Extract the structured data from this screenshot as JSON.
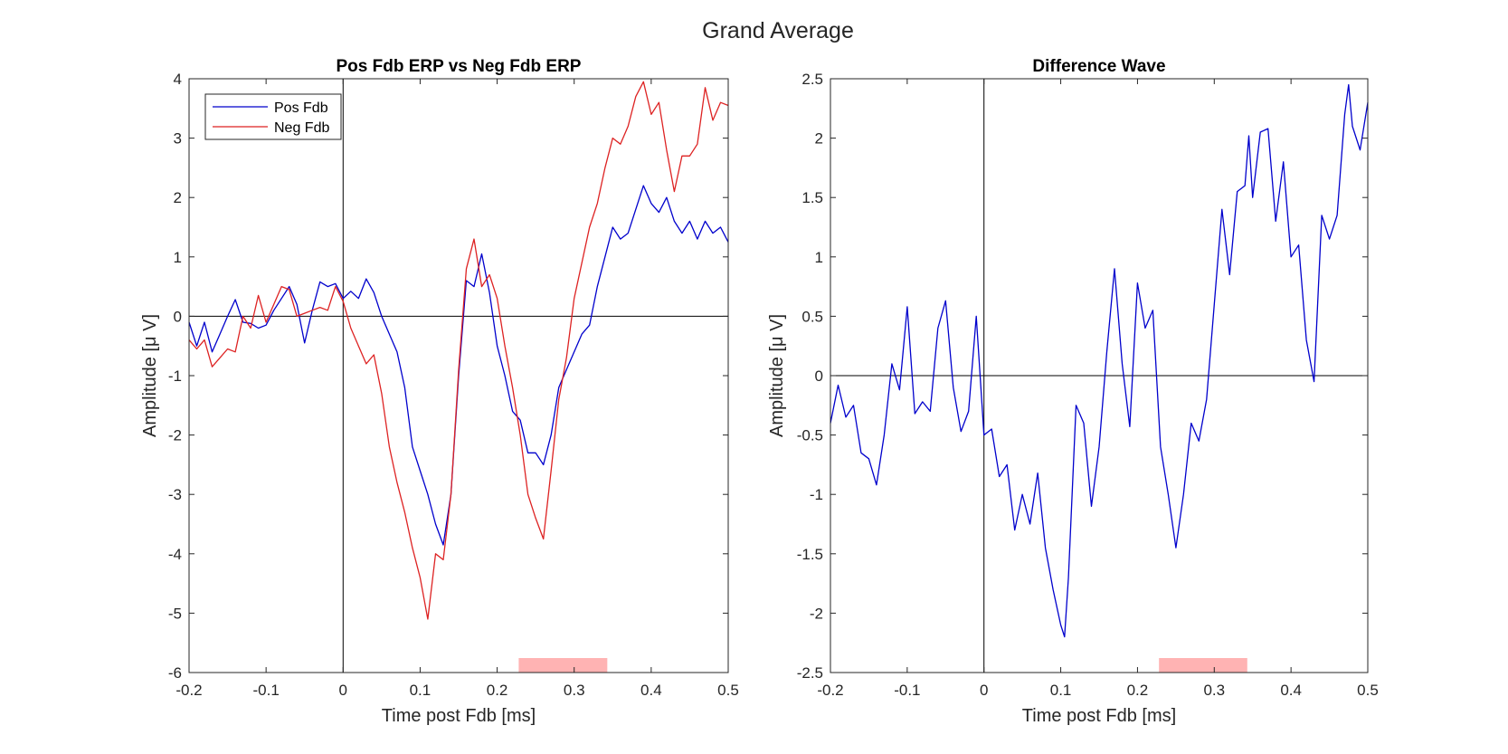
{
  "figure": {
    "title": "Grand Average"
  },
  "chart_data": [
    {
      "type": "line",
      "title": "Pos Fdb ERP vs Neg Fdb ERP",
      "xlabel": "Time post Fdb [ms]",
      "ylabel": "Amplitude [μ V]",
      "xlim": [
        -0.2,
        0.5
      ],
      "ylim": [
        -6,
        4
      ],
      "xticks": [
        "-0.2",
        "-0.1",
        "0",
        "0.1",
        "0.2",
        "0.3",
        "0.4",
        "0.5"
      ],
      "yticks": [
        "-6",
        "-5",
        "-4",
        "-3",
        "-2",
        "-1",
        "0",
        "1",
        "2",
        "3",
        "4"
      ],
      "xtick_values": [
        -0.2,
        -0.1,
        0,
        0.1,
        0.2,
        0.3,
        0.4,
        0.5
      ],
      "ytick_values": [
        -6,
        -5,
        -4,
        -3,
        -2,
        -1,
        0,
        1,
        2,
        3,
        4
      ],
      "grid": false,
      "legend_placement": "top-left",
      "significance_window": {
        "x": [
          0.228,
          0.343
        ],
        "color": "#ffb3b3"
      },
      "series": [
        {
          "name": "Pos Fdb",
          "color": "#0000cc",
          "points": [
            [
              -0.2,
              -0.1
            ],
            [
              -0.19,
              -0.5
            ],
            [
              -0.18,
              -0.1
            ],
            [
              -0.17,
              -0.6
            ],
            [
              -0.16,
              -0.3
            ],
            [
              -0.15,
              0.0
            ],
            [
              -0.14,
              0.28
            ],
            [
              -0.13,
              -0.1
            ],
            [
              -0.12,
              -0.12
            ],
            [
              -0.11,
              -0.2
            ],
            [
              -0.1,
              -0.15
            ],
            [
              -0.09,
              0.1
            ],
            [
              -0.08,
              0.3
            ],
            [
              -0.07,
              0.5
            ],
            [
              -0.06,
              0.2
            ],
            [
              -0.05,
              -0.45
            ],
            [
              -0.04,
              0.1
            ],
            [
              -0.03,
              0.58
            ],
            [
              -0.02,
              0.5
            ],
            [
              -0.01,
              0.55
            ],
            [
              0.0,
              0.3
            ],
            [
              0.01,
              0.42
            ],
            [
              0.02,
              0.3
            ],
            [
              0.03,
              0.63
            ],
            [
              0.04,
              0.4
            ],
            [
              0.05,
              0.0
            ],
            [
              0.06,
              -0.3
            ],
            [
              0.07,
              -0.6
            ],
            [
              0.08,
              -1.2
            ],
            [
              0.09,
              -2.2
            ],
            [
              0.1,
              -2.6
            ],
            [
              0.11,
              -3.0
            ],
            [
              0.12,
              -3.5
            ],
            [
              0.13,
              -3.85
            ],
            [
              0.14,
              -3.0
            ],
            [
              0.15,
              -1.0
            ],
            [
              0.16,
              0.6
            ],
            [
              0.17,
              0.5
            ],
            [
              0.18,
              1.05
            ],
            [
              0.19,
              0.4
            ],
            [
              0.2,
              -0.5
            ],
            [
              0.21,
              -1.0
            ],
            [
              0.22,
              -1.6
            ],
            [
              0.23,
              -1.75
            ],
            [
              0.24,
              -2.3
            ],
            [
              0.25,
              -2.3
            ],
            [
              0.26,
              -2.5
            ],
            [
              0.27,
              -2.0
            ],
            [
              0.28,
              -1.2
            ],
            [
              0.29,
              -0.9
            ],
            [
              0.3,
              -0.6
            ],
            [
              0.31,
              -0.3
            ],
            [
              0.32,
              -0.15
            ],
            [
              0.33,
              0.5
            ],
            [
              0.34,
              1.0
            ],
            [
              0.35,
              1.5
            ],
            [
              0.36,
              1.3
            ],
            [
              0.37,
              1.4
            ],
            [
              0.38,
              1.8
            ],
            [
              0.39,
              2.2
            ],
            [
              0.4,
              1.9
            ],
            [
              0.41,
              1.75
            ],
            [
              0.42,
              2.0
            ],
            [
              0.43,
              1.6
            ],
            [
              0.44,
              1.4
            ],
            [
              0.45,
              1.6
            ],
            [
              0.46,
              1.3
            ],
            [
              0.47,
              1.6
            ],
            [
              0.48,
              1.4
            ],
            [
              0.49,
              1.5
            ],
            [
              0.5,
              1.25
            ]
          ]
        },
        {
          "name": "Neg Fdb",
          "color": "#dd2222",
          "points": [
            [
              -0.2,
              -0.4
            ],
            [
              -0.19,
              -0.55
            ],
            [
              -0.18,
              -0.4
            ],
            [
              -0.17,
              -0.85
            ],
            [
              -0.16,
              -0.7
            ],
            [
              -0.15,
              -0.55
            ],
            [
              -0.14,
              -0.6
            ],
            [
              -0.13,
              0.0
            ],
            [
              -0.12,
              -0.2
            ],
            [
              -0.11,
              0.35
            ],
            [
              -0.1,
              -0.1
            ],
            [
              -0.09,
              0.2
            ],
            [
              -0.08,
              0.5
            ],
            [
              -0.07,
              0.45
            ],
            [
              -0.06,
              0.0
            ],
            [
              -0.05,
              0.05
            ],
            [
              -0.04,
              0.1
            ],
            [
              -0.03,
              0.15
            ],
            [
              -0.02,
              0.1
            ],
            [
              -0.01,
              0.5
            ],
            [
              0.0,
              0.25
            ],
            [
              0.01,
              -0.2
            ],
            [
              0.02,
              -0.5
            ],
            [
              0.03,
              -0.8
            ],
            [
              0.04,
              -0.65
            ],
            [
              0.05,
              -1.3
            ],
            [
              0.06,
              -2.2
            ],
            [
              0.07,
              -2.8
            ],
            [
              0.08,
              -3.3
            ],
            [
              0.09,
              -3.9
            ],
            [
              0.1,
              -4.4
            ],
            [
              0.11,
              -5.1
            ],
            [
              0.12,
              -4.0
            ],
            [
              0.13,
              -4.1
            ],
            [
              0.14,
              -3.0
            ],
            [
              0.15,
              -0.9
            ],
            [
              0.16,
              0.8
            ],
            [
              0.17,
              1.3
            ],
            [
              0.18,
              0.5
            ],
            [
              0.19,
              0.7
            ],
            [
              0.2,
              0.3
            ],
            [
              0.21,
              -0.5
            ],
            [
              0.22,
              -1.2
            ],
            [
              0.23,
              -2.0
            ],
            [
              0.24,
              -3.0
            ],
            [
              0.25,
              -3.4
            ],
            [
              0.26,
              -3.75
            ],
            [
              0.27,
              -2.6
            ],
            [
              0.28,
              -1.4
            ],
            [
              0.29,
              -0.7
            ],
            [
              0.3,
              0.3
            ],
            [
              0.31,
              0.9
            ],
            [
              0.32,
              1.5
            ],
            [
              0.33,
              1.9
            ],
            [
              0.34,
              2.5
            ],
            [
              0.35,
              3.0
            ],
            [
              0.36,
              2.9
            ],
            [
              0.37,
              3.2
            ],
            [
              0.38,
              3.7
            ],
            [
              0.39,
              3.95
            ],
            [
              0.4,
              3.4
            ],
            [
              0.41,
              3.6
            ],
            [
              0.42,
              2.8
            ],
            [
              0.43,
              2.1
            ],
            [
              0.44,
              2.7
            ],
            [
              0.45,
              2.7
            ],
            [
              0.46,
              2.9
            ],
            [
              0.47,
              3.85
            ],
            [
              0.48,
              3.3
            ],
            [
              0.49,
              3.6
            ],
            [
              0.5,
              3.55
            ]
          ]
        }
      ]
    },
    {
      "type": "line",
      "title": "Difference Wave",
      "xlabel": "Time post Fdb [ms]",
      "ylabel": "Amplitude [μ V]",
      "xlim": [
        -0.2,
        0.5
      ],
      "ylim": [
        -2.5,
        2.5
      ],
      "xticks": [
        "-0.2",
        "-0.1",
        "0",
        "0.1",
        "0.2",
        "0.3",
        "0.4",
        "0.5"
      ],
      "yticks": [
        "-2.5",
        "-2",
        "-1.5",
        "-1",
        "-0.5",
        "0",
        "0.5",
        "1",
        "1.5",
        "2",
        "2.5"
      ],
      "xtick_values": [
        -0.2,
        -0.1,
        0,
        0.1,
        0.2,
        0.3,
        0.4,
        0.5
      ],
      "ytick_values": [
        -2.5,
        -2,
        -1.5,
        -1,
        -0.5,
        0,
        0.5,
        1,
        1.5,
        2,
        2.5
      ],
      "grid": false,
      "significance_window": {
        "x": [
          0.228,
          0.343
        ],
        "color": "#ffb3b3"
      },
      "series": [
        {
          "color": "#0000cc",
          "points": [
            [
              -0.2,
              -0.4
            ],
            [
              -0.19,
              -0.08
            ],
            [
              -0.18,
              -0.35
            ],
            [
              -0.17,
              -0.25
            ],
            [
              -0.16,
              -0.65
            ],
            [
              -0.15,
              -0.7
            ],
            [
              -0.14,
              -0.92
            ],
            [
              -0.13,
              -0.5
            ],
            [
              -0.12,
              0.1
            ],
            [
              -0.11,
              -0.12
            ],
            [
              -0.1,
              0.58
            ],
            [
              -0.09,
              -0.32
            ],
            [
              -0.08,
              -0.22
            ],
            [
              -0.07,
              -0.3
            ],
            [
              -0.06,
              0.4
            ],
            [
              -0.05,
              0.63
            ],
            [
              -0.04,
              -0.1
            ],
            [
              -0.03,
              -0.47
            ],
            [
              -0.02,
              -0.3
            ],
            [
              -0.01,
              0.5
            ],
            [
              0.0,
              -0.5
            ],
            [
              0.01,
              -0.45
            ],
            [
              0.02,
              -0.85
            ],
            [
              0.03,
              -0.75
            ],
            [
              0.04,
              -1.3
            ],
            [
              0.05,
              -1.0
            ],
            [
              0.06,
              -1.25
            ],
            [
              0.07,
              -0.82
            ],
            [
              0.08,
              -1.45
            ],
            [
              0.09,
              -1.8
            ],
            [
              0.1,
              -2.1
            ],
            [
              0.105,
              -2.2
            ],
            [
              0.11,
              -1.7
            ],
            [
              0.12,
              -0.25
            ],
            [
              0.13,
              -0.4
            ],
            [
              0.14,
              -1.1
            ],
            [
              0.15,
              -0.6
            ],
            [
              0.16,
              0.2
            ],
            [
              0.17,
              0.9
            ],
            [
              0.18,
              0.1
            ],
            [
              0.19,
              -0.43
            ],
            [
              0.2,
              0.78
            ],
            [
              0.21,
              0.4
            ],
            [
              0.22,
              0.55
            ],
            [
              0.23,
              -0.6
            ],
            [
              0.24,
              -1.0
            ],
            [
              0.25,
              -1.45
            ],
            [
              0.26,
              -1.0
            ],
            [
              0.27,
              -0.4
            ],
            [
              0.28,
              -0.55
            ],
            [
              0.29,
              -0.2
            ],
            [
              0.3,
              0.6
            ],
            [
              0.31,
              1.4
            ],
            [
              0.32,
              0.85
            ],
            [
              0.33,
              1.55
            ],
            [
              0.34,
              1.6
            ],
            [
              0.345,
              2.02
            ],
            [
              0.35,
              1.5
            ],
            [
              0.36,
              2.05
            ],
            [
              0.37,
              2.08
            ],
            [
              0.38,
              1.3
            ],
            [
              0.39,
              1.8
            ],
            [
              0.4,
              1.0
            ],
            [
              0.41,
              1.1
            ],
            [
              0.42,
              0.3
            ],
            [
              0.43,
              -0.05
            ],
            [
              0.44,
              1.35
            ],
            [
              0.45,
              1.15
            ],
            [
              0.46,
              1.35
            ],
            [
              0.47,
              2.2
            ],
            [
              0.475,
              2.45
            ],
            [
              0.48,
              2.1
            ],
            [
              0.49,
              1.9
            ],
            [
              0.5,
              2.3
            ]
          ]
        }
      ]
    }
  ]
}
